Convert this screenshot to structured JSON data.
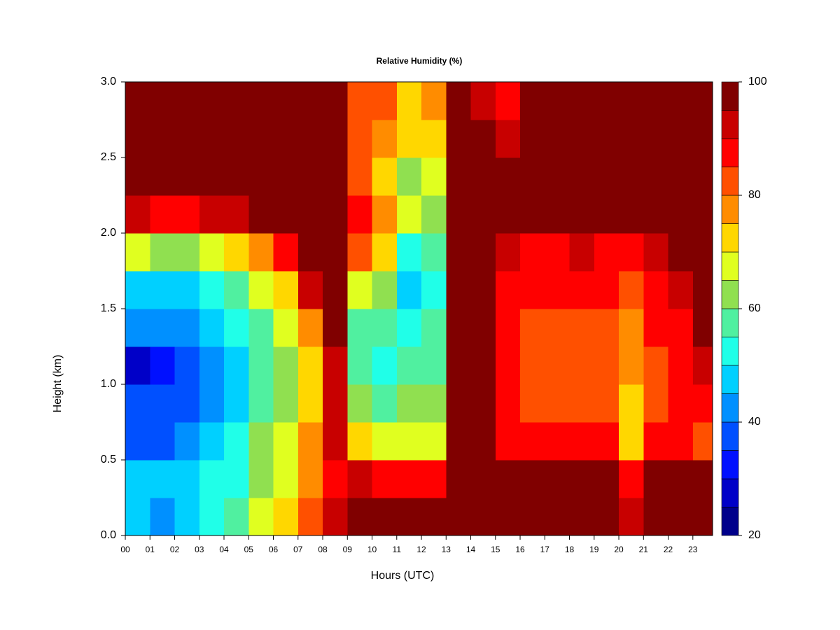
{
  "chart_data": {
    "type": "heatmap",
    "title": "Relative Humidity (%)",
    "x_label": "Hours (UTC)",
    "y_label": "Height (km)",
    "x": [
      0,
      1,
      2,
      3,
      4,
      5,
      6,
      7,
      8,
      9,
      10,
      11,
      12,
      13,
      14,
      15,
      16,
      17,
      18,
      19,
      20,
      21,
      22,
      23
    ],
    "y": [
      0,
      0.25,
      0.5,
      0.75,
      1,
      1.25,
      1.5,
      1.75,
      2,
      2.25,
      2.5,
      2.75
    ],
    "z": [
      [
        45,
        45,
        38,
        35,
        28,
        40,
        48,
        65,
        90,
        100,
        100,
        100
      ],
      [
        42,
        45,
        38,
        35,
        30,
        40,
        48,
        62,
        88,
        100,
        100,
        100
      ],
      [
        45,
        48,
        42,
        38,
        35,
        42,
        48,
        62,
        88,
        100,
        100,
        100
      ],
      [
        50,
        50,
        45,
        42,
        40,
        45,
        50,
        65,
        90,
        100,
        100,
        100
      ],
      [
        58,
        52,
        50,
        48,
        48,
        52,
        58,
        70,
        92,
        100,
        100,
        100
      ],
      [
        65,
        60,
        60,
        55,
        55,
        58,
        65,
        75,
        95,
        100,
        100,
        100
      ],
      [
        72,
        68,
        68,
        62,
        62,
        65,
        72,
        85,
        100,
        100,
        100,
        100
      ],
      [
        80,
        78,
        78,
        72,
        72,
        78,
        90,
        100,
        100,
        100,
        100,
        100
      ],
      [
        90,
        88,
        90,
        92,
        92,
        95,
        100,
        100,
        100,
        100,
        100,
        100
      ],
      [
        100,
        90,
        70,
        60,
        55,
        58,
        65,
        80,
        85,
        82,
        80,
        80
      ],
      [
        100,
        88,
        68,
        58,
        52,
        55,
        60,
        72,
        75,
        72,
        75,
        80
      ],
      [
        100,
        88,
        68,
        60,
        55,
        52,
        48,
        52,
        65,
        60,
        70,
        72
      ],
      [
        100,
        88,
        68,
        62,
        58,
        55,
        52,
        55,
        62,
        65,
        70,
        75
      ],
      [
        100,
        100,
        100,
        100,
        100,
        100,
        100,
        100,
        100,
        100,
        100,
        100
      ],
      [
        100,
        100,
        100,
        98,
        98,
        98,
        98,
        98,
        100,
        100,
        97,
        90
      ],
      [
        100,
        100,
        85,
        85,
        85,
        85,
        88,
        90,
        100,
        100,
        90,
        85
      ],
      [
        100,
        98,
        85,
        82,
        82,
        82,
        85,
        88,
        100,
        100,
        100,
        100
      ],
      [
        98,
        98,
        85,
        82,
        80,
        82,
        85,
        88,
        100,
        100,
        100,
        100
      ],
      [
        98,
        98,
        85,
        82,
        80,
        82,
        85,
        90,
        100,
        100,
        100,
        100
      ],
      [
        98,
        98,
        85,
        80,
        80,
        80,
        85,
        88,
        100,
        100,
        100,
        100
      ],
      [
        90,
        85,
        72,
        72,
        75,
        75,
        80,
        88,
        95,
        100,
        98,
        95
      ],
      [
        98,
        98,
        85,
        82,
        82,
        85,
        88,
        90,
        100,
        100,
        98,
        95
      ],
      [
        98,
        98,
        88,
        85,
        85,
        88,
        90,
        95,
        100,
        100,
        100,
        100
      ],
      [
        98,
        95,
        82,
        88,
        92,
        95,
        95,
        98,
        100,
        100,
        100,
        100
      ]
    ],
    "levels": [
      20,
      25,
      30,
      35,
      40,
      45,
      50,
      55,
      60,
      65,
      70,
      75,
      80,
      85,
      90,
      95,
      100
    ],
    "colors": [
      "#00008b",
      "#0000c8",
      "#0010ff",
      "#0050ff",
      "#0090ff",
      "#00d0ff",
      "#20ffe8",
      "#50f0a0",
      "#90e050",
      "#e0ff20",
      "#ffd700",
      "#ff8c00",
      "#ff5000",
      "#ff0000",
      "#c80000",
      "#800000"
    ],
    "colorbar_ticks": [
      20,
      40,
      60,
      80,
      100
    ],
    "xlim": [
      0,
      23.8
    ],
    "ylim": [
      0,
      3
    ],
    "xticks": [
      {
        "value": 0,
        "label": "00"
      },
      {
        "value": 1,
        "label": "01"
      },
      {
        "value": 2,
        "label": "02"
      },
      {
        "value": 3,
        "label": "03"
      },
      {
        "value": 4,
        "label": "04"
      },
      {
        "value": 5,
        "label": "05"
      },
      {
        "value": 6,
        "label": "06"
      },
      {
        "value": 7,
        "label": "07"
      },
      {
        "value": 8,
        "label": "08"
      },
      {
        "value": 9,
        "label": "09"
      },
      10,
      11,
      12,
      13,
      14,
      15,
      16,
      17,
      18,
      19,
      20,
      21,
      22,
      23
    ],
    "yticks": [
      {
        "value": 0,
        "label": "0.0"
      },
      0.5,
      {
        "value": 1,
        "label": "1.0"
      },
      1.5,
      {
        "value": 2,
        "label": "2.0"
      },
      2.5,
      {
        "value": 3,
        "label": "3.0"
      }
    ]
  }
}
